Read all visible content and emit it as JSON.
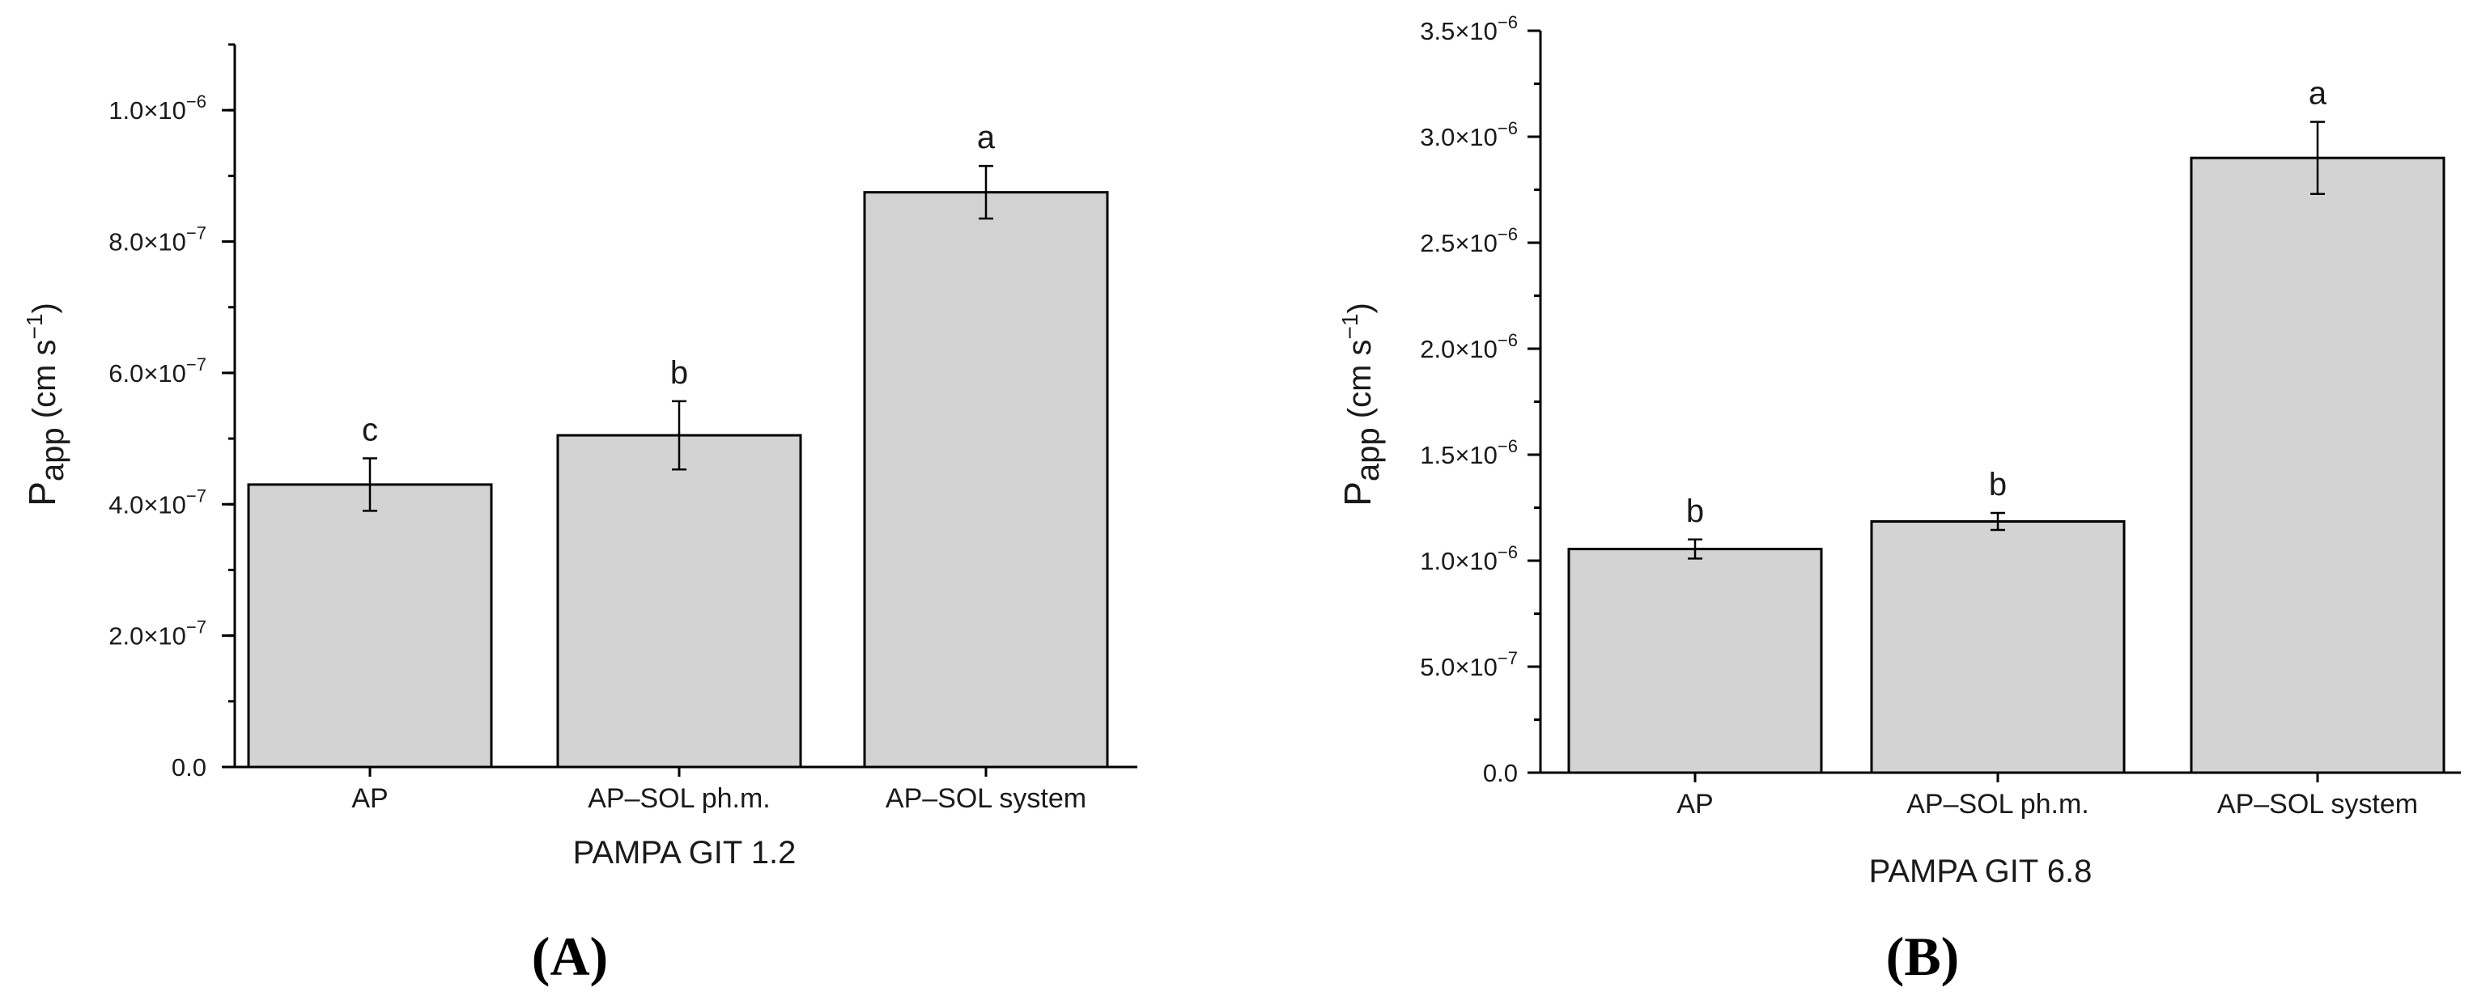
{
  "chart_data": [
    {
      "type": "bar",
      "panel_label": "(A)",
      "categories": [
        "AP",
        "AP–SOL ph.m.",
        "AP–SOL system"
      ],
      "values": [
        4.3e-07,
        5.05e-07,
        8.75e-07
      ],
      "errors": [
        4e-08,
        5.2e-08,
        4e-08
      ],
      "significance": [
        "c",
        "b",
        "a"
      ],
      "xlabel": "PAMPA GIT 1.2",
      "ylabel": {
        "main": "P",
        "sub": "app",
        "unit": " (cm s",
        "sup": "−1",
        "close": ")"
      },
      "ylim": [
        0,
        1.1e-06
      ],
      "yticks": [
        {
          "value": 0,
          "label": "0.0"
        },
        {
          "value": 2e-07,
          "label": "2.0×10",
          "exp": "−7"
        },
        {
          "value": 4e-07,
          "label": "4.0×10",
          "exp": "−7"
        },
        {
          "value": 6e-07,
          "label": "6.0×10",
          "exp": "−7"
        },
        {
          "value": 8e-07,
          "label": "8.0×10",
          "exp": "−7"
        },
        {
          "value": 1e-06,
          "label": "1.0×10",
          "exp": "−6"
        }
      ],
      "minor_step": 1e-07,
      "grid": false,
      "bar_color": "#d3d3d3"
    },
    {
      "type": "bar",
      "panel_label": "(B)",
      "categories": [
        "AP",
        "AP–SOL ph.m.",
        "AP–SOL system"
      ],
      "values": [
        1.055e-06,
        1.185e-06,
        2.9e-06
      ],
      "errors": [
        4.5e-08,
        4e-08,
        1.7e-07
      ],
      "significance": [
        "b",
        "b",
        "a"
      ],
      "xlabel": "PAMPA GIT 6.8",
      "ylabel": {
        "main": "P",
        "sub": "app",
        "unit": " (cm s",
        "sup": "−1",
        "close": ")"
      },
      "ylim": [
        0,
        3.5e-06
      ],
      "yticks": [
        {
          "value": 0,
          "label": "0.0"
        },
        {
          "value": 5e-07,
          "label": "5.0×10",
          "exp": "−7"
        },
        {
          "value": 1e-06,
          "label": "1.0×10",
          "exp": "−6"
        },
        {
          "value": 1.5e-06,
          "label": "1.5×10",
          "exp": "−6"
        },
        {
          "value": 2e-06,
          "label": "2.0×10",
          "exp": "−6"
        },
        {
          "value": 2.5e-06,
          "label": "2.5×10",
          "exp": "−6"
        },
        {
          "value": 3e-06,
          "label": "3.0×10",
          "exp": "−6"
        },
        {
          "value": 3.5e-06,
          "label": "3.5×10",
          "exp": "−6"
        }
      ],
      "minor_step": 2.5e-07,
      "grid": false,
      "bar_color": "#d3d3d3"
    }
  ]
}
